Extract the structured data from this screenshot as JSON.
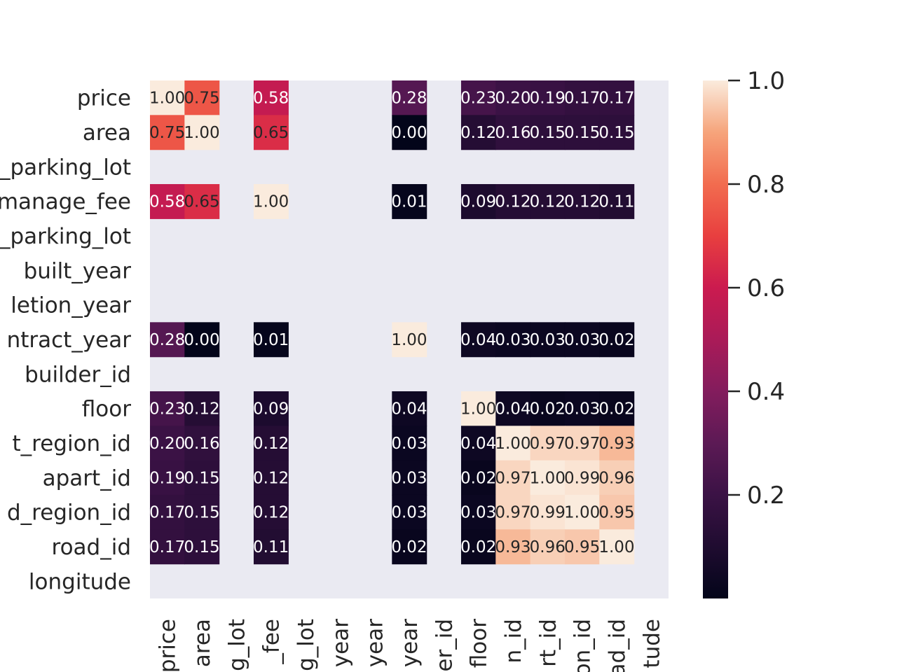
{
  "chart_data": {
    "type": "heatmap",
    "row_labels": [
      "price",
      "area",
      "parking_lot",
      "manage_fee",
      "parking_lot",
      "built_year",
      "completion_year",
      "contract_year",
      "builder_id",
      "floor",
      "district_region_id",
      "apart_id",
      "road_region_id",
      "road_id",
      "longitude"
    ],
    "col_labels": [
      "price",
      "area",
      "g_lot",
      "_fee",
      "g_lot",
      "year",
      "year",
      "year",
      "er_id",
      "floor",
      "n_id",
      "rt_id",
      "on_id",
      "ad_id",
      "tude"
    ],
    "row_tick_text": [
      "price",
      "area",
      "_parking_lot",
      "manage_fee",
      "_parking_lot",
      "built_year",
      "letion_year",
      "ntract_year",
      "builder_id",
      "floor",
      "t_region_id",
      "apart_id",
      "d_region_id",
      "road_id",
      "longitude"
    ],
    "values": [
      [
        1.0,
        0.75,
        null,
        0.58,
        null,
        null,
        null,
        0.28,
        null,
        0.23,
        0.2,
        0.19,
        0.17,
        0.17,
        null
      ],
      [
        0.75,
        1.0,
        null,
        0.65,
        null,
        null,
        null,
        0.0,
        null,
        0.12,
        0.16,
        0.15,
        0.15,
        0.15,
        null
      ],
      [
        null,
        null,
        null,
        null,
        null,
        null,
        null,
        null,
        null,
        null,
        null,
        null,
        null,
        null,
        null
      ],
      [
        0.58,
        0.65,
        null,
        1.0,
        null,
        null,
        null,
        0.01,
        null,
        0.09,
        0.12,
        0.12,
        0.12,
        0.11,
        null
      ],
      [
        null,
        null,
        null,
        null,
        null,
        null,
        null,
        null,
        null,
        null,
        null,
        null,
        null,
        null,
        null
      ],
      [
        null,
        null,
        null,
        null,
        null,
        null,
        null,
        null,
        null,
        null,
        null,
        null,
        null,
        null,
        null
      ],
      [
        null,
        null,
        null,
        null,
        null,
        null,
        null,
        null,
        null,
        null,
        null,
        null,
        null,
        null,
        null
      ],
      [
        0.28,
        0.0,
        null,
        0.01,
        null,
        null,
        null,
        1.0,
        null,
        0.04,
        0.03,
        0.03,
        0.03,
        0.02,
        null
      ],
      [
        null,
        null,
        null,
        null,
        null,
        null,
        null,
        null,
        null,
        null,
        null,
        null,
        null,
        null,
        null
      ],
      [
        0.23,
        0.12,
        null,
        0.09,
        null,
        null,
        null,
        0.04,
        null,
        1.0,
        0.04,
        0.02,
        0.03,
        0.02,
        null
      ],
      [
        0.2,
        0.16,
        null,
        0.12,
        null,
        null,
        null,
        0.03,
        null,
        0.04,
        1.0,
        0.97,
        0.97,
        0.93,
        null
      ],
      [
        0.19,
        0.15,
        null,
        0.12,
        null,
        null,
        null,
        0.03,
        null,
        0.02,
        0.97,
        1.0,
        0.99,
        0.96,
        null
      ],
      [
        0.17,
        0.15,
        null,
        0.12,
        null,
        null,
        null,
        0.03,
        null,
        0.03,
        0.97,
        0.99,
        1.0,
        0.95,
        null
      ],
      [
        0.17,
        0.15,
        null,
        0.11,
        null,
        null,
        null,
        0.02,
        null,
        0.02,
        0.93,
        0.96,
        0.95,
        1.0,
        null
      ],
      [
        null,
        null,
        null,
        null,
        null,
        null,
        null,
        null,
        null,
        null,
        null,
        null,
        null,
        null,
        null
      ]
    ],
    "colorbar": {
      "ticks": [
        "1.0",
        "0.8",
        "0.6",
        "0.4",
        "0.2"
      ],
      "tick_values": [
        1.0,
        0.8,
        0.6,
        0.4,
        0.2
      ],
      "min": 0.0,
      "max": 1.0
    },
    "missing_color": "#eaeaf2",
    "colormap": "rocket",
    "annotated": true
  }
}
